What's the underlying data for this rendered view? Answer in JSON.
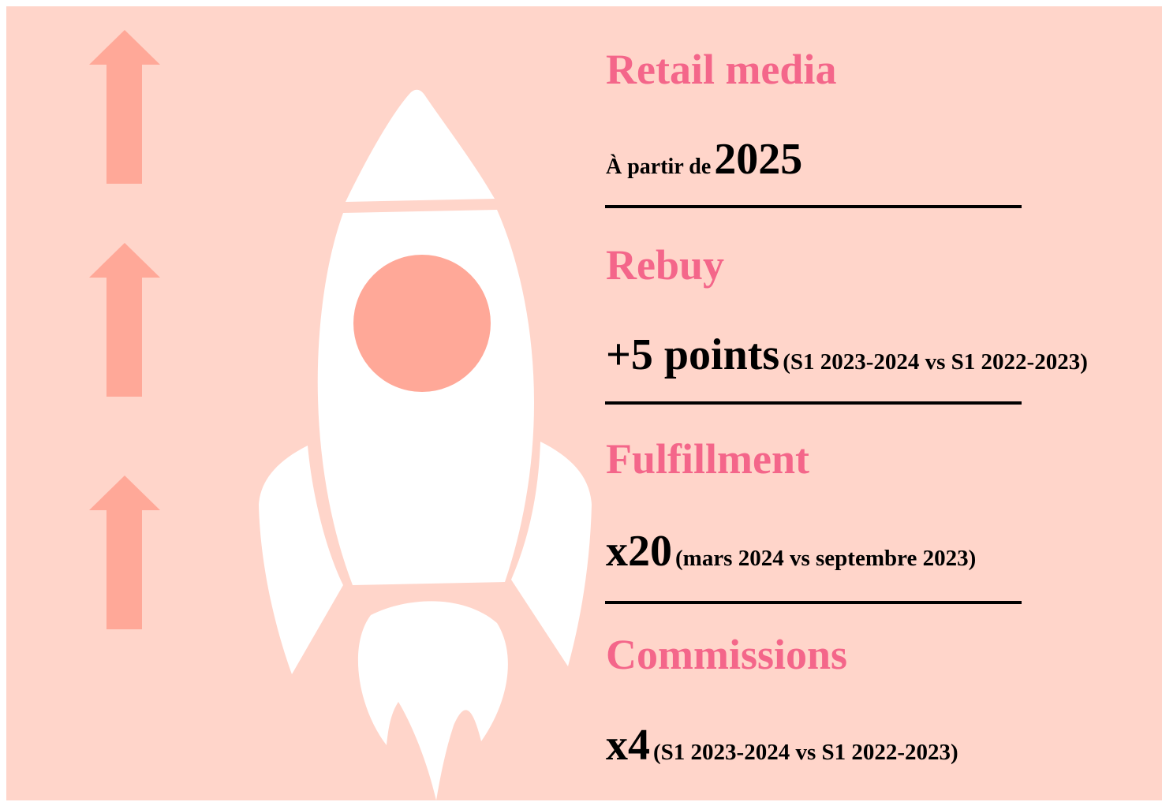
{
  "sections": [
    {
      "title": "Retail media",
      "prefix": "À partir de",
      "value": "2025"
    },
    {
      "title": "Rebuy",
      "value": "+5 points",
      "note": "(S1 2023-2024 vs S1 2022-2023)"
    },
    {
      "title": "Fulfillment",
      "value": "x20",
      "note": "(mars 2024 vs septembre 2023)"
    },
    {
      "title": "Commissions",
      "value": "x4",
      "note": "(S1 2023-2024 vs S1 2022-2023)"
    }
  ]
}
